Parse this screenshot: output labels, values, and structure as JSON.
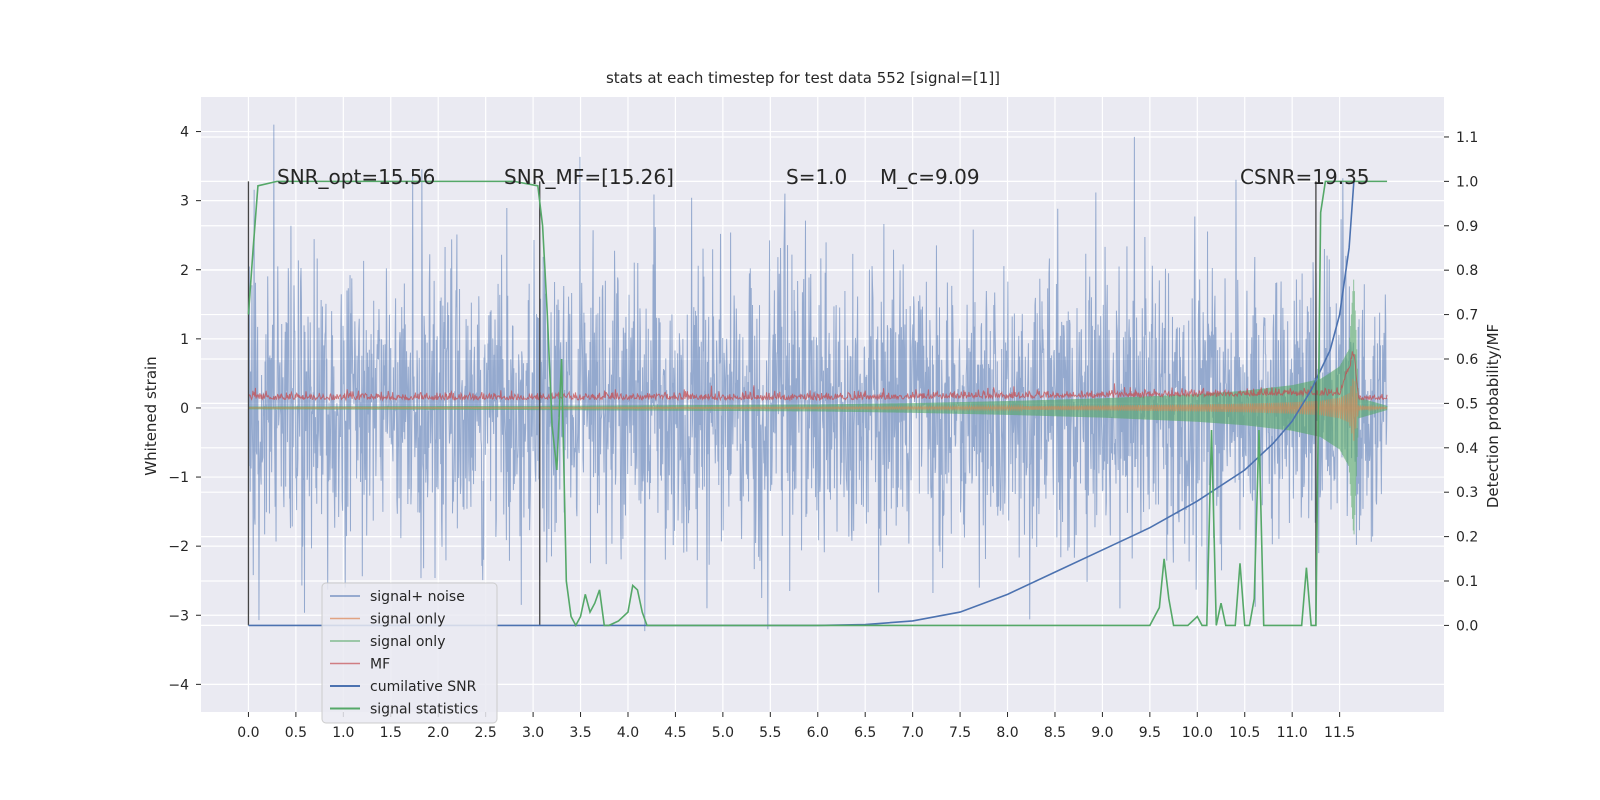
{
  "chart_data": {
    "type": "line",
    "title": "stats at each timestep for test data 552 [signal=[1]]",
    "xlabel": "",
    "ylabel": "Whitened strain",
    "y2label": "Detection probability/MF",
    "xlim": [
      -0.5,
      12.6
    ],
    "ylim": [
      -4.4,
      4.5
    ],
    "y2lim": [
      -0.195,
      1.19
    ],
    "xticks": [
      "0.0",
      "0.5",
      "1.0",
      "1.5",
      "2.0",
      "2.5",
      "3.0",
      "3.5",
      "4.0",
      "4.5",
      "5.0",
      "5.5",
      "6.0",
      "6.5",
      "7.0",
      "7.5",
      "8.0",
      "8.5",
      "9.0",
      "9.5",
      "10.0",
      "10.5",
      "11.0",
      "11.5"
    ],
    "yticks": [
      "4",
      "3",
      "2",
      "1",
      "0",
      "−1",
      "−2",
      "−3",
      "−4"
    ],
    "y2ticks": [
      "1.1",
      "1.0",
      "0.9",
      "0.8",
      "0.7",
      "0.6",
      "0.5",
      "0.4",
      "0.3",
      "0.2",
      "0.1",
      "0.0"
    ],
    "grid": true,
    "legend_position": "lower-left",
    "annotations": {
      "snr_opt": "SNR_opt=15.56",
      "snr_mf": "SNR_MF=[15.26]",
      "s": "S=1.0",
      "mc": "M_c=9.09",
      "csnr": "CSNR=19.35"
    },
    "vlines_x": [
      0.0,
      3.07,
      11.25
    ],
    "series": [
      {
        "name": "signal+ noise",
        "color": "#4c72b0",
        "axis": "left",
        "kind": "noise",
        "amplitude_std": 1.05,
        "x_range": [
          0.0,
          12.0
        ]
      },
      {
        "name": "signal only",
        "color": "#dd8452",
        "axis": "left",
        "kind": "chirp",
        "x_range": [
          0.0,
          12.0
        ]
      },
      {
        "name": "signal only",
        "color": "#55a868",
        "axis": "left",
        "kind": "chirp_envelope",
        "x": [
          0.0,
          3.0,
          6.0,
          7.0,
          8.0,
          9.0,
          10.0,
          10.5,
          11.0,
          11.3,
          11.5,
          11.6,
          11.65,
          11.7,
          12.0
        ],
        "y": [
          0.02,
          0.03,
          0.05,
          0.07,
          0.1,
          0.14,
          0.2,
          0.25,
          0.33,
          0.42,
          0.6,
          0.85,
          1.9,
          0.15,
          0.03
        ]
      },
      {
        "name": "MF",
        "color": "#c44e52",
        "axis": "right",
        "kind": "mf_band",
        "x": [
          0.0,
          6.0,
          11.5,
          11.65,
          11.7,
          12.0
        ],
        "y": [
          0.52,
          0.52,
          0.53,
          0.62,
          0.52,
          0.52
        ]
      },
      {
        "name": "cumilative SNR",
        "color": "#4c72b0",
        "axis": "right",
        "x": [
          0.0,
          6.0,
          6.5,
          7.0,
          7.5,
          8.0,
          8.5,
          9.0,
          9.5,
          10.0,
          10.5,
          10.8,
          11.0,
          11.2,
          11.4,
          11.5,
          11.6,
          11.65
        ],
        "y": [
          0.0,
          0.0,
          0.002,
          0.01,
          0.03,
          0.07,
          0.12,
          0.17,
          0.22,
          0.28,
          0.35,
          0.41,
          0.46,
          0.53,
          0.62,
          0.7,
          0.85,
          1.0
        ]
      },
      {
        "name": "signal statistics",
        "color": "#55a868",
        "axis": "right",
        "x": [
          0.0,
          0.05,
          0.1,
          0.3,
          1.0,
          2.0,
          2.8,
          3.05,
          3.1,
          3.15,
          3.2,
          3.25,
          3.3,
          3.35,
          3.4,
          3.45,
          3.5,
          3.55,
          3.6,
          3.65,
          3.7,
          3.75,
          3.8,
          3.9,
          4.0,
          4.05,
          4.1,
          4.15,
          4.2,
          4.25,
          4.3,
          5.0,
          6.0,
          7.0,
          7.5,
          7.6,
          7.7,
          8.0,
          9.0,
          9.5,
          9.6,
          9.65,
          9.7,
          9.75,
          9.8,
          9.9,
          10.0,
          10.05,
          10.1,
          10.15,
          10.2,
          10.25,
          10.3,
          10.35,
          10.4,
          10.45,
          10.5,
          10.55,
          10.6,
          10.65,
          10.7,
          10.75,
          10.8,
          10.85,
          11.0,
          11.1,
          11.15,
          11.2,
          11.25,
          11.3,
          11.35,
          11.4,
          11.45,
          11.5,
          12.0
        ],
        "y": [
          0.7,
          0.85,
          0.99,
          1.0,
          1.0,
          1.0,
          1.0,
          0.99,
          0.9,
          0.7,
          0.45,
          0.35,
          0.6,
          0.1,
          0.02,
          0.0,
          0.02,
          0.07,
          0.03,
          0.05,
          0.08,
          0.0,
          0.0,
          0.01,
          0.03,
          0.09,
          0.08,
          0.03,
          0.0,
          0.0,
          0.0,
          0.0,
          0.0,
          0.0,
          0.0,
          0.0,
          0.0,
          0.0,
          0.0,
          0.0,
          0.04,
          0.15,
          0.06,
          0.0,
          0.0,
          0.0,
          0.02,
          0.0,
          0.0,
          0.44,
          0.0,
          0.05,
          0.0,
          0.0,
          0.0,
          0.14,
          0.0,
          0.0,
          0.06,
          0.44,
          0.0,
          0.0,
          0.0,
          0.0,
          0.0,
          0.0,
          0.13,
          0.0,
          0.0,
          0.93,
          1.0,
          1.0,
          1.0,
          1.0,
          1.0
        ]
      }
    ]
  }
}
